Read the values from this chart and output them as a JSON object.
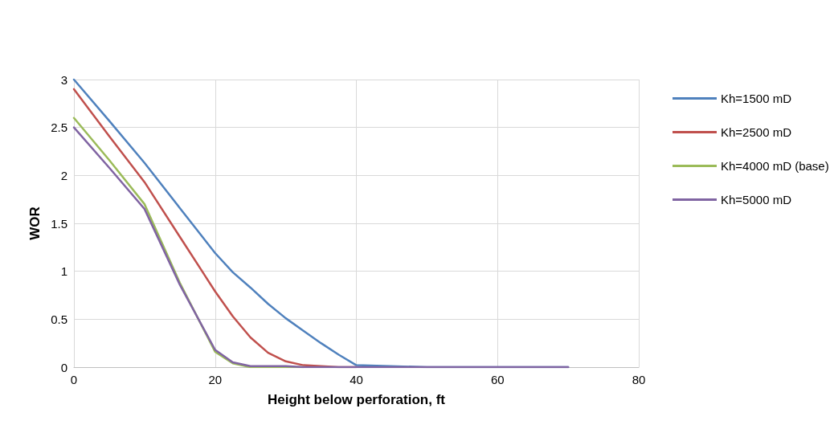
{
  "chart_data": {
    "type": "line",
    "xlabel": "Height below perforation, ft",
    "ylabel": "WOR",
    "x": [
      0,
      5,
      10,
      15,
      20,
      22.5,
      25,
      27.5,
      30,
      32.5,
      35,
      37.5,
      40,
      50,
      60,
      70
    ],
    "series": [
      {
        "name": "Kh=1500 mD",
        "color": "#4f81bd",
        "values": [
          3,
          2.57,
          2.13,
          1.66,
          1.19,
          0.99,
          0.83,
          0.66,
          0.51,
          0.38,
          0.25,
          0.13,
          0.02,
          0,
          0,
          0
        ]
      },
      {
        "name": "Kh=2500 mD",
        "color": "#c0504d",
        "values": [
          2.9,
          2.41,
          1.93,
          1.36,
          0.79,
          0.53,
          0.31,
          0.15,
          0.06,
          0.02,
          0.01,
          0,
          0,
          null,
          null,
          null
        ]
      },
      {
        "name": "Kh=4000 mD (base)",
        "color": "#9bbb59",
        "values": [
          2.6,
          2.16,
          1.7,
          0.88,
          0.16,
          0.04,
          0,
          0,
          0,
          0,
          null,
          null,
          null,
          null,
          null,
          null
        ]
      },
      {
        "name": "Kh=5000 mD",
        "color": "#8064a2",
        "values": [
          2.5,
          2.08,
          1.65,
          0.86,
          0.18,
          0.05,
          0.01,
          0.01,
          0.01,
          0,
          0,
          0,
          0,
          0,
          0,
          0
        ]
      }
    ],
    "xlim": [
      0,
      80
    ],
    "xticks": [
      0,
      20,
      40,
      60,
      80
    ],
    "ylim": [
      0,
      3
    ],
    "yticks": [
      0,
      0.5,
      1,
      1.5,
      2,
      2.5,
      3
    ],
    "grid": true,
    "legend": "right",
    "marker": "none",
    "line_style": "solid"
  }
}
